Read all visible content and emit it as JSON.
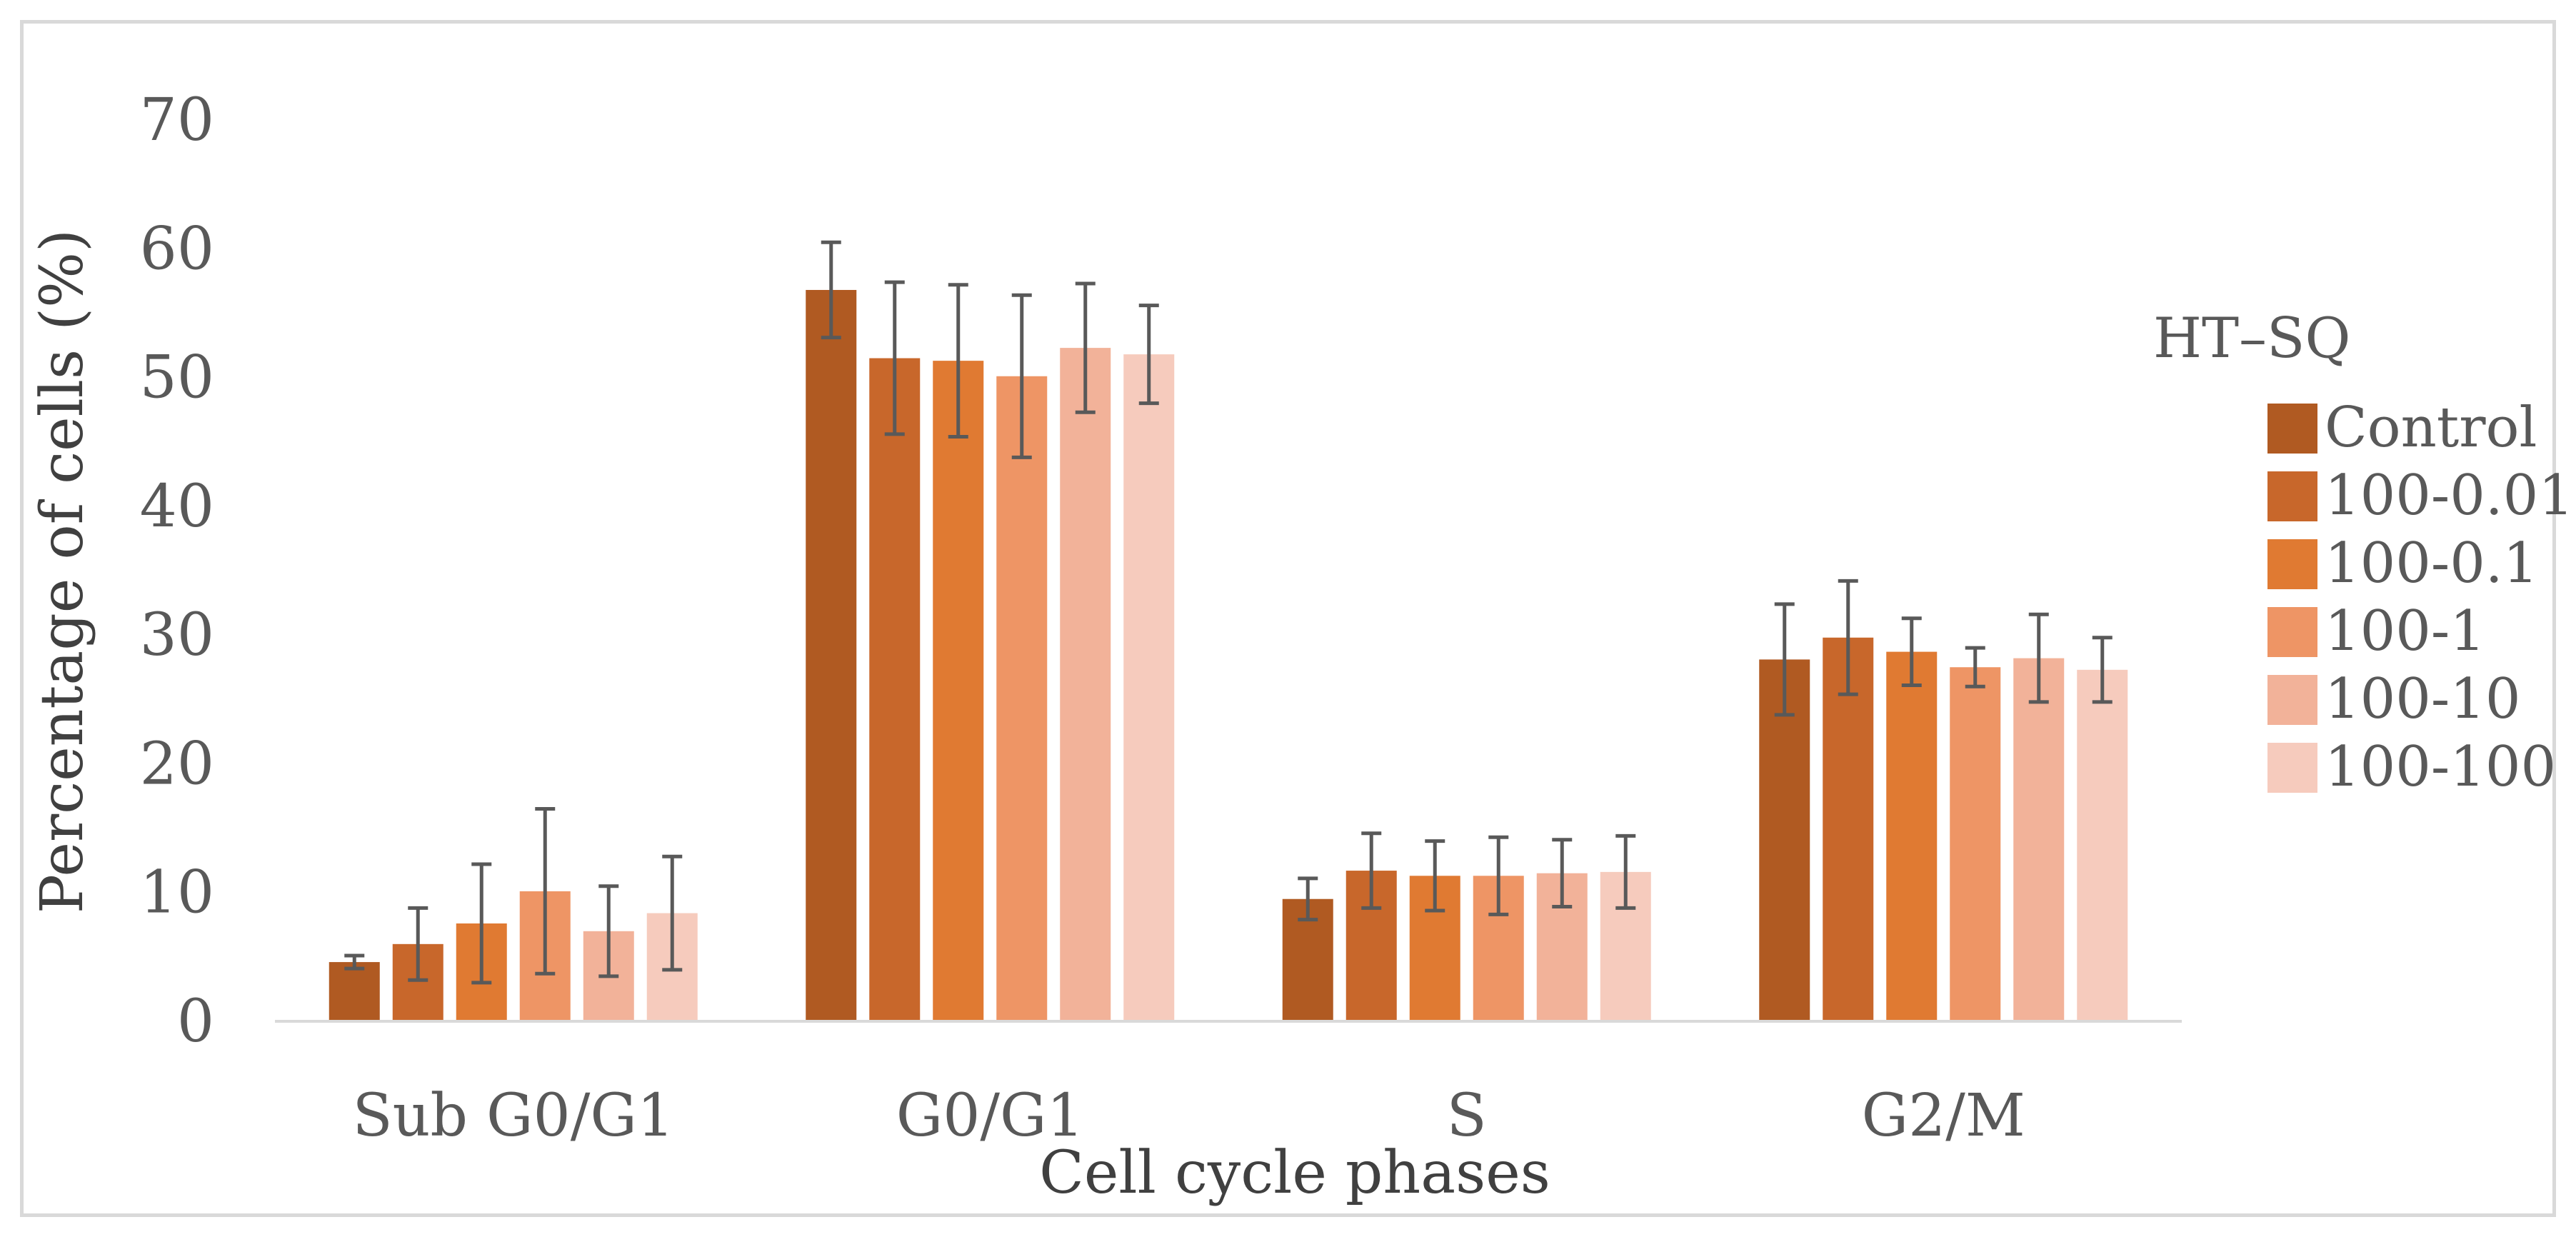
{
  "chart_data": {
    "type": "bar",
    "title": "",
    "xlabel": "Cell cycle phases",
    "ylabel": "Percentage of cells (%)",
    "ylim": [
      0,
      70
    ],
    "yticks": [
      "0",
      "10",
      "20",
      "30",
      "40",
      "50",
      "60",
      "70"
    ],
    "grid": false,
    "legend_title": "HT–SQ",
    "legend_position": "right",
    "categories": [
      "Sub G0/G1",
      "G0/G1",
      "S",
      "G2/M"
    ],
    "series": [
      {
        "name": "Control",
        "color": "#b05a22",
        "values": [
          4.6,
          56.8,
          9.5,
          28.1
        ],
        "errors": [
          0.5,
          3.7,
          1.6,
          4.3
        ]
      },
      {
        "name": "100-0.01",
        "color": "#c8672b",
        "values": [
          6.0,
          51.5,
          11.7,
          29.8
        ],
        "errors": [
          2.8,
          5.9,
          2.9,
          4.4
        ]
      },
      {
        "name": "100-0.1",
        "color": "#e07a32",
        "values": [
          7.6,
          51.3,
          11.3,
          28.7
        ],
        "errors": [
          4.6,
          5.9,
          2.7,
          2.6
        ]
      },
      {
        "name": "100-1",
        "color": "#ee9565",
        "values": [
          10.1,
          50.1,
          11.3,
          27.5
        ],
        "errors": [
          6.4,
          6.3,
          3.0,
          1.5
        ]
      },
      {
        "name": "100-10",
        "color": "#f2b299",
        "values": [
          7.0,
          52.3,
          11.5,
          28.2
        ],
        "errors": [
          3.5,
          5.0,
          2.6,
          3.4
        ]
      },
      {
        "name": "100-100",
        "color": "#f6cbbd",
        "values": [
          8.4,
          51.8,
          11.6,
          27.3
        ],
        "errors": [
          4.4,
          3.8,
          2.8,
          2.5
        ]
      }
    ]
  }
}
